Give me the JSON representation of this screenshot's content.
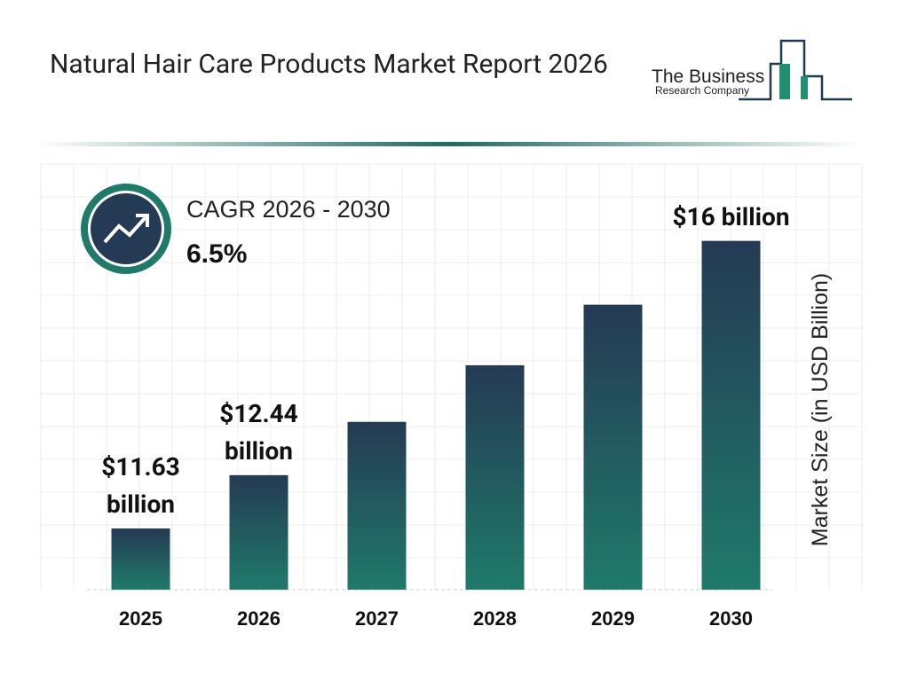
{
  "brand": {
    "line1": "The Business",
    "line2": "Research Company"
  },
  "chart_data": {
    "type": "bar",
    "title": "Natural Hair Care Products Market Report 2026",
    "categories": [
      "2025",
      "2026",
      "2027",
      "2028",
      "2029",
      "2030"
    ],
    "values": [
      11.63,
      12.44,
      13.25,
      14.11,
      15.03,
      16
    ],
    "value_labels": [
      "$11.63 billion",
      "$12.44 billion",
      null,
      null,
      null,
      "$16 billion"
    ],
    "y_label": "Market Size (in USD Billion)",
    "annotation": {
      "label": "CAGR 2026 - 2030",
      "value": "6.5%"
    },
    "color_top": "#253a54",
    "color_bottom": "#1f7a6a",
    "ylim": [
      10.7,
      17.1
    ]
  }
}
